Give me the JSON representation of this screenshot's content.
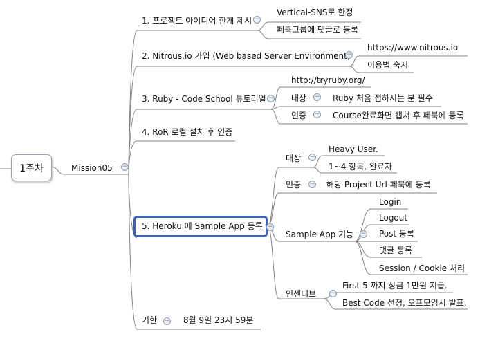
{
  "root": {
    "label": "1주차"
  },
  "mission": {
    "label": "Mission05"
  },
  "topics": [
    {
      "label": "1. 프로젝트 아이디어 한개 제시",
      "children": [
        "Vertical-SNS로 한정",
        "페북그룹에 댓글로 등록"
      ]
    },
    {
      "label": "2. Nitrous.io 가입 (Web based Server Environment)",
      "children": [
        "https://www.nitrous.io",
        "이용법 숙지"
      ]
    },
    {
      "label": "3. Ruby - Code School 튜토리얼",
      "url": "http://tryruby.org/",
      "groups": [
        {
          "label": "대상",
          "items": [
            "Ruby 처음 접하시는 분 필수"
          ]
        },
        {
          "label": "인증",
          "items": [
            "Course완료화면 캡쳐 후 페북에 등록"
          ]
        }
      ]
    },
    {
      "label": "4. RoR 로컬 설치 후 인증"
    },
    {
      "label": "5. Heroku 에 Sample App 등록",
      "groups": [
        {
          "label": "대상",
          "items": [
            "Heavy User.",
            "1~4 항목, 완료자"
          ]
        },
        {
          "label": "인증",
          "items": [
            "해당 Project Url 페북에 등록"
          ]
        },
        {
          "label": "Sample App 기능",
          "items": [
            "Login",
            "Logout",
            "Post 등록",
            "댓글 등록",
            "Session / Cookie 처리"
          ]
        },
        {
          "label": "인센티브",
          "items": [
            "First 5 까지 상금 1만원 지급.",
            "Best Code 선정, 오프모임시 발표."
          ]
        }
      ]
    },
    {
      "label": "기한",
      "value": "8월 9일 23시 59분"
    }
  ],
  "fold_symbol": "−",
  "colors": {
    "line": "#808080",
    "selection": "#3d63b6",
    "fold_border": "#8a9ab8"
  }
}
